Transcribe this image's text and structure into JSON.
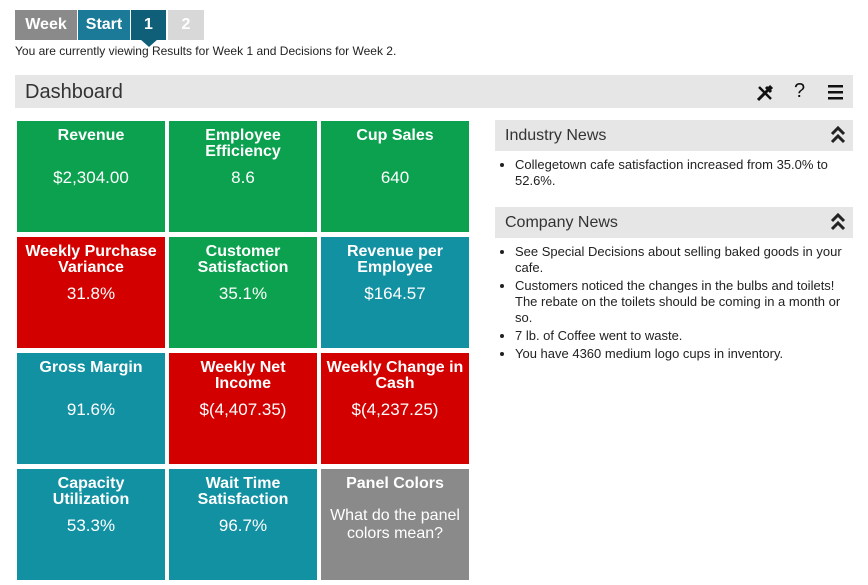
{
  "tabs": [
    "Week",
    "Start",
    "1",
    "2"
  ],
  "status": "You are currently viewing Results for Week 1 and Decisions for Week 2.",
  "dashboard": {
    "title": "Dashboard",
    "help": "?"
  },
  "tiles": [
    {
      "title": "Revenue",
      "value": "$2,304.00",
      "color": "#0ba14f"
    },
    {
      "title": "Employee Efficiency",
      "value": "8.6",
      "color": "#0ba14f"
    },
    {
      "title": "Cup Sales",
      "value": "640",
      "color": "#0ba14f"
    },
    {
      "title": "Weekly Purchase Variance",
      "value": "31.8%",
      "color": "#d30000"
    },
    {
      "title": "Customer Satisfaction",
      "value": "35.1%",
      "color": "#0ba14f"
    },
    {
      "title": "Revenue per Employee",
      "value": "$164.57",
      "color": "#1291a2"
    },
    {
      "title": "Gross Margin",
      "value": "91.6%",
      "color": "#1291a2"
    },
    {
      "title": "Weekly Net Income",
      "value": "$(4,407.35)",
      "color": "#d30000"
    },
    {
      "title": "Weekly Change in Cash",
      "value": "$(4,237.25)",
      "color": "#d30000"
    },
    {
      "title": "Capacity Utilization",
      "value": "53.3%",
      "color": "#1291a2"
    },
    {
      "title": "Wait Time Satisfaction",
      "value": "96.7%",
      "color": "#1291a2"
    },
    {
      "title": "Panel Colors",
      "question": "What do the panel colors mean?",
      "color": "#8a8a8a"
    }
  ],
  "industry_news": {
    "title": "Industry News",
    "items": [
      "Collegetown cafe satisfaction increased from 35.0% to 52.6%."
    ]
  },
  "company_news": {
    "title": "Company News",
    "items": [
      "See Special Decisions about selling baked goods in your cafe.",
      "Customers noticed the changes in the bulbs and toilets! The rebate on the toilets should be coming in a month or so.",
      "7 lb. of Coffee went to waste.",
      "You have 4360 medium logo cups in inventory."
    ]
  }
}
